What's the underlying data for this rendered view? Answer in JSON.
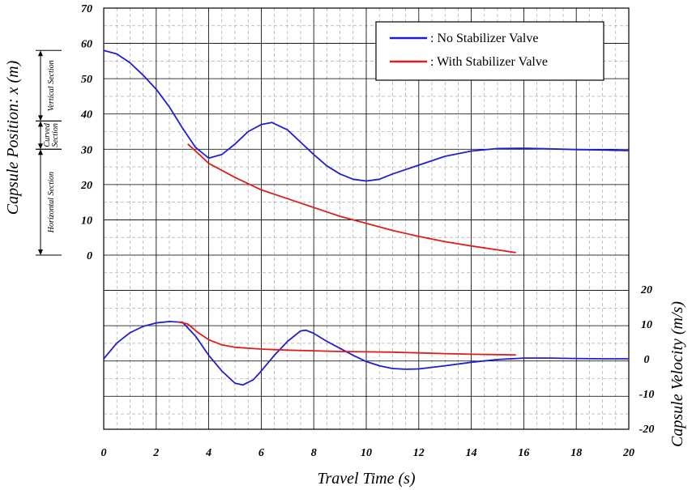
{
  "chart_data": [
    {
      "type": "line",
      "panel": "position",
      "ylabel": "Capsule Position: x (m)",
      "ylim": [
        0,
        70
      ],
      "y_ticks": [
        "70",
        "60",
        "50",
        "40",
        "30",
        "20",
        "10",
        "0"
      ],
      "grid": true,
      "sections": [
        {
          "label": "Vertical Section",
          "range": [
            38,
            58
          ]
        },
        {
          "label": "Curved Section",
          "range": [
            30,
            38
          ]
        },
        {
          "label": "Horizontal Section",
          "range": [
            0,
            30
          ]
        }
      ],
      "legend": {
        "position": "top-right"
      },
      "series": [
        {
          "name": ": No Stabilizer Valve",
          "color": "#1f1fd0",
          "points": [
            [
              0,
              58
            ],
            [
              0.5,
              57
            ],
            [
              1,
              54.5
            ],
            [
              1.5,
              51
            ],
            [
              2,
              47
            ],
            [
              2.5,
              42
            ],
            [
              3,
              36
            ],
            [
              3.5,
              30.5
            ],
            [
              4,
              27.5
            ],
            [
              4.5,
              28.5
            ],
            [
              5,
              31.5
            ],
            [
              5.5,
              35
            ],
            [
              6,
              37
            ],
            [
              6.4,
              37.6
            ],
            [
              7,
              35.5
            ],
            [
              7.5,
              32
            ],
            [
              8,
              28.5
            ],
            [
              8.5,
              25.3
            ],
            [
              9,
              23
            ],
            [
              9.5,
              21.5
            ],
            [
              10,
              21
            ],
            [
              10.5,
              21.5
            ],
            [
              11,
              23
            ],
            [
              12,
              25.5
            ],
            [
              13,
              28
            ],
            [
              14,
              29.5
            ],
            [
              15,
              30.2
            ],
            [
              16,
              30.3
            ],
            [
              17,
              30.1
            ],
            [
              18,
              29.9
            ],
            [
              19,
              29.8
            ],
            [
              20,
              29.6
            ]
          ]
        },
        {
          "name": ": With Stabilizer Valve",
          "color": "#e01c1c",
          "points": [
            [
              3.2,
              31.5
            ],
            [
              3.5,
              29.5
            ],
            [
              4,
              26
            ],
            [
              5,
              22
            ],
            [
              6,
              18.5
            ],
            [
              7,
              16
            ],
            [
              8,
              13.5
            ],
            [
              9,
              11
            ],
            [
              10,
              9
            ],
            [
              11,
              7
            ],
            [
              12,
              5.3
            ],
            [
              13,
              3.8
            ],
            [
              14,
              2.6
            ],
            [
              15,
              1.5
            ],
            [
              15.7,
              0.7
            ]
          ]
        }
      ]
    },
    {
      "type": "line",
      "panel": "velocity",
      "xlabel": "Travel Time (s)",
      "ylabel": "Capsule Velocity (m/s)",
      "xlim": [
        0,
        20
      ],
      "ylim": [
        -20,
        20
      ],
      "x_ticks": [
        "0",
        "2",
        "4",
        "6",
        "8",
        "10",
        "12",
        "14",
        "16",
        "18",
        "20"
      ],
      "y_ticks": [
        "20",
        "10",
        "0",
        "-10",
        "-20"
      ],
      "grid": true,
      "series": [
        {
          "color": "#1f1fd0",
          "points": [
            [
              0,
              0
            ],
            [
              0.5,
              4.5
            ],
            [
              1,
              7.5
            ],
            [
              1.5,
              9.3
            ],
            [
              2,
              10.3
            ],
            [
              2.5,
              10.7
            ],
            [
              3,
              10.5
            ],
            [
              3.5,
              6.5
            ],
            [
              4,
              1
            ],
            [
              4.5,
              -3.5
            ],
            [
              5,
              -7
            ],
            [
              5.3,
              -7.5
            ],
            [
              5.7,
              -6
            ],
            [
              6,
              -3.5
            ],
            [
              6.5,
              1
            ],
            [
              7,
              5
            ],
            [
              7.5,
              8
            ],
            [
              7.7,
              8.2
            ],
            [
              8,
              7.3
            ],
            [
              8.5,
              5
            ],
            [
              9,
              3
            ],
            [
              9.5,
              1
            ],
            [
              10,
              -0.8
            ],
            [
              10.5,
              -2
            ],
            [
              11,
              -2.8
            ],
            [
              11.5,
              -3
            ],
            [
              12,
              -2.9
            ],
            [
              13,
              -2
            ],
            [
              14,
              -1
            ],
            [
              15,
              -0.2
            ],
            [
              16,
              0.2
            ],
            [
              17,
              0.2
            ],
            [
              18,
              0.1
            ],
            [
              19,
              0
            ],
            [
              20,
              0
            ]
          ]
        },
        {
          "color": "#e01c1c",
          "points": [
            [
              2.8,
              10.6
            ],
            [
              3.2,
              10
            ],
            [
              3.6,
              7.5
            ],
            [
              4,
              5.5
            ],
            [
              4.5,
              4
            ],
            [
              5,
              3.3
            ],
            [
              6,
              2.8
            ],
            [
              7,
              2.5
            ],
            [
              8,
              2.3
            ],
            [
              9,
              2.1
            ],
            [
              10,
              2
            ],
            [
              11,
              1.9
            ],
            [
              12,
              1.7
            ],
            [
              13,
              1.5
            ],
            [
              14,
              1.3
            ],
            [
              15,
              1.2
            ],
            [
              15.7,
              1.1
            ]
          ]
        }
      ]
    }
  ]
}
